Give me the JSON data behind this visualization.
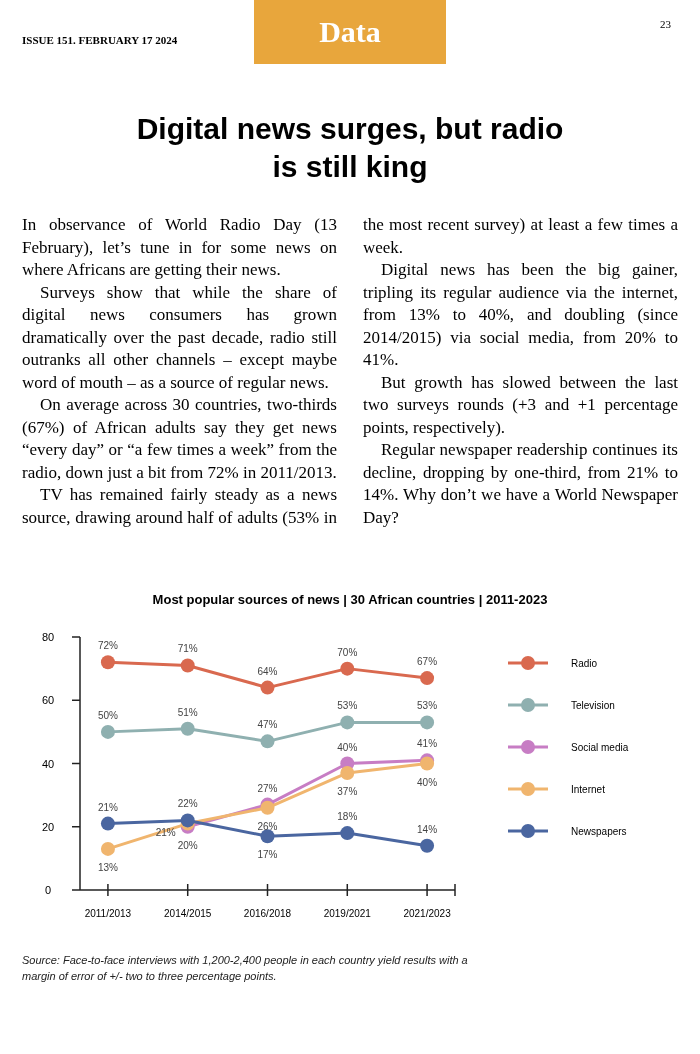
{
  "chart_data": {
    "type": "line",
    "title": "Digital news surges, but radio is still king",
    "subtitle": "Most popular sources of news | 30 African countries | 2011-2023",
    "annotations": [
      "ISSUE 151. FEBRUARY 17 2024",
      "Data",
      "23",
      "In observance of World Radio Day (13 February), let’s tune in for some news on where Africans are getting their news.",
      "Surveys show that while the share of digital news consumers has grown dramatically over the past decade, radio still outranks all other channels – except maybe word of mouth – as a source of regular news.",
      "On average across 30 countries, two-thirds (67%) of African adults say they get news “every day” or “a few times a week” from the radio, down just a bit from 72% in 2011/2013.",
      "TV has remained fairly steady as a news source, drawing around half of adults (53% in the most recent survey) at least a few times a week.",
      "Digital news has been the big gainer, tripling its regular audience via the internet, from 13% to 40%, and doubling (since 2014/2015) via social media, from 20% to 41%.",
      "But growth has slowed between the last two surveys rounds (+3 and +1 percentage points, respectively).",
      "Regular newspaper readership continues its decline, dropping by one-third, from 21% to 14%. Why don’t we have a World Newspaper Day?",
      "Source: Face-to-face interviews with 1,200-2,400 people in each country yield results with a margin of error of +/- two to three percentage points."
    ],
    "categories": [
      "2011/2013",
      "2014/2015",
      "2016/2018",
      "2019/2021",
      "2021/2023"
    ],
    "series": [
      {
        "name": "Radio",
        "color": "#d9694f",
        "values": [
          72,
          71,
          64,
          70,
          67
        ],
        "value_labels": [
          "72%",
          "71%",
          "64%",
          "70%",
          "67%"
        ]
      },
      {
        "name": "Television",
        "color": "#8fb0b0",
        "values": [
          50,
          51,
          47,
          53,
          53
        ],
        "value_labels": [
          "50%",
          "51%",
          "47%",
          "53%",
          "53%"
        ]
      },
      {
        "name": "Social media",
        "color": "#c77dc4",
        "values": [
          null,
          20,
          27,
          40,
          41
        ],
        "value_labels": [
          null,
          "20%",
          "27%",
          "40%",
          "41%"
        ]
      },
      {
        "name": "Internet",
        "color": "#f0b56e",
        "values": [
          13,
          21,
          26,
          37,
          40
        ],
        "value_labels": [
          "13%",
          "21%",
          "26%",
          "37%",
          "40%"
        ]
      },
      {
        "name": "Newspapers",
        "color": "#4a66a0",
        "values": [
          21,
          22,
          17,
          18,
          14
        ],
        "value_labels": [
          "21%",
          "22%",
          "17%",
          "18%",
          "14%"
        ]
      }
    ],
    "ylim": [
      0,
      80
    ],
    "yticks": [
      0,
      20,
      40,
      60,
      80
    ],
    "legend": "right",
    "marker": "circle",
    "line_style": "solid",
    "grid": false
  }
}
